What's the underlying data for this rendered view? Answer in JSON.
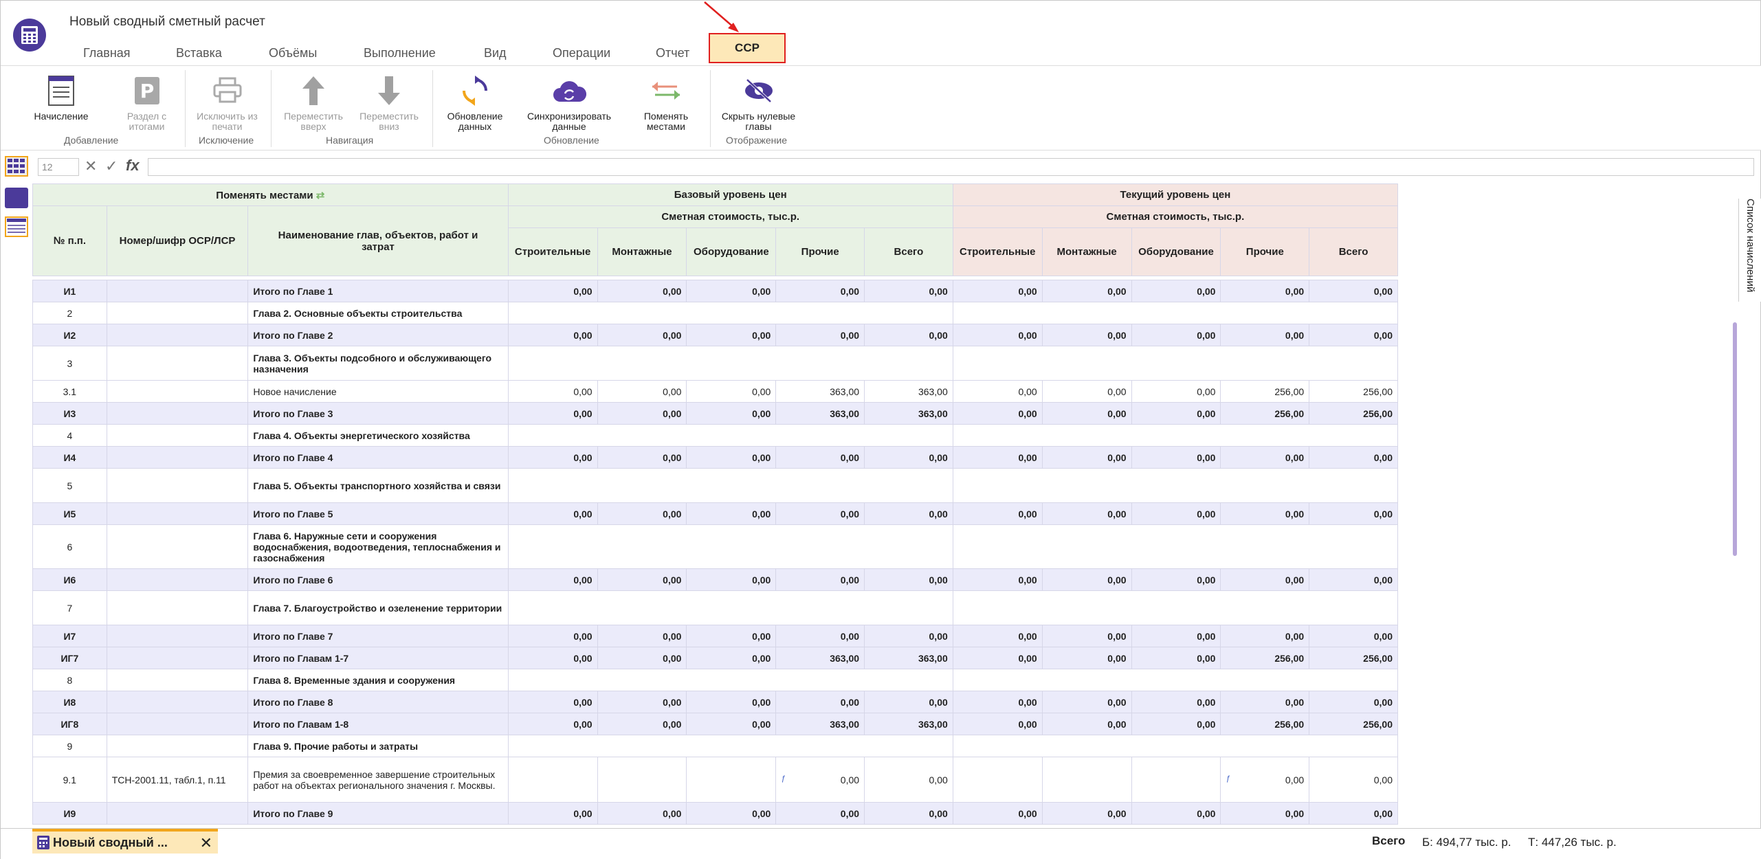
{
  "app": {
    "title": "Новый сводный сметный расчет"
  },
  "menu": [
    "Главная",
    "Вставка",
    "Объёмы",
    "Выполнение",
    "Вид",
    "Операции",
    "Отчет",
    "ССР"
  ],
  "ribbon": {
    "buttons": [
      {
        "label": "Начисление",
        "icon": "document-icon"
      },
      {
        "label": "Раздел с итогами",
        "icon": "parking-p-icon"
      },
      {
        "label": "Исключить из печати",
        "icon": "printer-icon"
      },
      {
        "label": "Переместить вверх",
        "icon": "arrow-up-icon"
      },
      {
        "label": "Переместить вниз",
        "icon": "arrow-down-icon"
      },
      {
        "label": "Обновление данных",
        "icon": "refresh-icon"
      },
      {
        "label": "Синхронизировать данные",
        "icon": "cloud-sync-icon"
      },
      {
        "label": "Поменять местами",
        "icon": "swap-arrows-icon"
      },
      {
        "label": "Скрыть нулевые главы",
        "icon": "eye-hide-icon"
      }
    ],
    "groups": [
      "Добавление",
      "Исключение",
      "Навигация",
      "Обновление",
      "Отображение"
    ]
  },
  "formula_bar": {
    "cell_ref": "12",
    "fx": "fx"
  },
  "grid": {
    "swap_header": "Поменять местами",
    "base_header": "Базовый уровень цен",
    "current_header": "Текущий уровень цен",
    "cost_header_base": "Сметная стоимость, тыс.р.",
    "cost_header_current": "Сметная стоимость, тыс.р.",
    "col_no": "№ п.п.",
    "col_code": "Номер/шифр ОСР/ЛСР",
    "col_name": "Наименование глав, объектов, работ и затрат",
    "cost_cols": [
      "Строительные",
      "Монтажные",
      "Оборудование",
      "Прочие",
      "Всего"
    ],
    "rows": [
      {
        "no": "И1",
        "code": "",
        "name": "Итого по Главе 1",
        "type": "sub",
        "v": [
          "0,00",
          "0,00",
          "0,00",
          "0,00",
          "0,00",
          "0,00",
          "0,00",
          "0,00",
          "0,00",
          "0,00"
        ]
      },
      {
        "no": "2",
        "code": "",
        "name": "Глава 2. Основные объекты строительства",
        "type": "ch",
        "v": []
      },
      {
        "no": "И2",
        "code": "",
        "name": "Итого по Главе 2",
        "type": "sub",
        "v": [
          "0,00",
          "0,00",
          "0,00",
          "0,00",
          "0,00",
          "0,00",
          "0,00",
          "0,00",
          "0,00",
          "0,00"
        ]
      },
      {
        "no": "3",
        "code": "",
        "name": "Глава 3. Объекты подсобного и обслуживающего назначения",
        "type": "ch",
        "h": "tall",
        "v": []
      },
      {
        "no": "3.1",
        "code": "",
        "name": "Новое начисление",
        "type": "item",
        "v": [
          "0,00",
          "0,00",
          "0,00",
          "363,00",
          "363,00",
          "0,00",
          "0,00",
          "0,00",
          "256,00",
          "256,00"
        ]
      },
      {
        "no": "И3",
        "code": "",
        "name": "Итого по Главе 3",
        "type": "sub",
        "v": [
          "0,00",
          "0,00",
          "0,00",
          "363,00",
          "363,00",
          "0,00",
          "0,00",
          "0,00",
          "256,00",
          "256,00"
        ]
      },
      {
        "no": "4",
        "code": "",
        "name": "Глава 4. Объекты энергетического хозяйства",
        "type": "ch",
        "v": []
      },
      {
        "no": "И4",
        "code": "",
        "name": "Итого по Главе 4",
        "type": "sub",
        "v": [
          "0,00",
          "0,00",
          "0,00",
          "0,00",
          "0,00",
          "0,00",
          "0,00",
          "0,00",
          "0,00",
          "0,00"
        ]
      },
      {
        "no": "5",
        "code": "",
        "name": "Глава 5. Объекты транспортного хозяйства и связи",
        "type": "ch",
        "h": "tall",
        "v": []
      },
      {
        "no": "И5",
        "code": "",
        "name": "Итого по Главе 5",
        "type": "sub",
        "v": [
          "0,00",
          "0,00",
          "0,00",
          "0,00",
          "0,00",
          "0,00",
          "0,00",
          "0,00",
          "0,00",
          "0,00"
        ]
      },
      {
        "no": "6",
        "code": "",
        "name": "Глава 6. Наружные сети и сооружения водоснабжения, водоотведения, теплоснабжения и газоснабжения",
        "type": "ch",
        "h": "tall2",
        "v": []
      },
      {
        "no": "И6",
        "code": "",
        "name": "Итого по Главе 6",
        "type": "sub",
        "v": [
          "0,00",
          "0,00",
          "0,00",
          "0,00",
          "0,00",
          "0,00",
          "0,00",
          "0,00",
          "0,00",
          "0,00"
        ]
      },
      {
        "no": "7",
        "code": "",
        "name": "Глава 7. Благоустройство и озеленение территории",
        "type": "ch",
        "h": "tall",
        "v": []
      },
      {
        "no": "И7",
        "code": "",
        "name": "Итого по Главе 7",
        "type": "sub",
        "v": [
          "0,00",
          "0,00",
          "0,00",
          "0,00",
          "0,00",
          "0,00",
          "0,00",
          "0,00",
          "0,00",
          "0,00"
        ]
      },
      {
        "no": "ИГ7",
        "code": "",
        "name": "Итого по Главам 1-7",
        "type": "sub",
        "v": [
          "0,00",
          "0,00",
          "0,00",
          "363,00",
          "363,00",
          "0,00",
          "0,00",
          "0,00",
          "256,00",
          "256,00"
        ]
      },
      {
        "no": "8",
        "code": "",
        "name": "Глава 8. Временные здания и сооружения",
        "type": "ch",
        "v": []
      },
      {
        "no": "И8",
        "code": "",
        "name": "Итого по Главе 8",
        "type": "sub",
        "v": [
          "0,00",
          "0,00",
          "0,00",
          "0,00",
          "0,00",
          "0,00",
          "0,00",
          "0,00",
          "0,00",
          "0,00"
        ]
      },
      {
        "no": "ИГ8",
        "code": "",
        "name": "Итого по Главам 1-8",
        "type": "sub",
        "v": [
          "0,00",
          "0,00",
          "0,00",
          "363,00",
          "363,00",
          "0,00",
          "0,00",
          "0,00",
          "256,00",
          "256,00"
        ]
      },
      {
        "no": "9",
        "code": "",
        "name": "Глава 9. Прочие работы и затраты",
        "type": "ch",
        "v": []
      },
      {
        "no": "9.1",
        "code": "ТСН-2001.11, табл.1, п.11",
        "name": "Премия за своевременное завершение строительных работ на объектах регионального значения г. Москвы.",
        "type": "item",
        "h": "tall3",
        "v": [
          "",
          "",
          "",
          "0,00",
          "0,00",
          "",
          "",
          "",
          "0,00",
          "0,00"
        ],
        "fx": [
          3,
          8
        ]
      },
      {
        "no": "И9",
        "code": "",
        "name": "Итого по Главе 9",
        "type": "sub",
        "v": [
          "0,00",
          "0,00",
          "0,00",
          "0,00",
          "0,00",
          "0,00",
          "0,00",
          "0,00",
          "0,00",
          "0,00"
        ]
      }
    ]
  },
  "right_panel": {
    "label": "Список начислений"
  },
  "bottom": {
    "doc_tab": "Новый сводный ...",
    "total_label": "Всего",
    "base_total": "Б: 494,77 тыс. р.",
    "current_total": "Т: 447,26 тыс. р."
  }
}
